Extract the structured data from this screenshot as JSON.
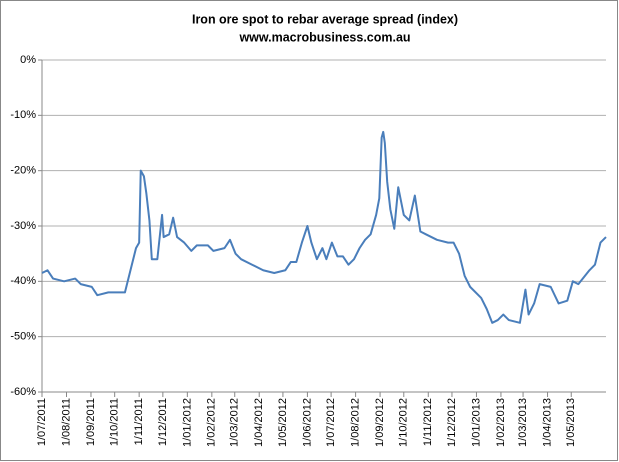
{
  "chart_data": {
    "type": "line",
    "title": "Iron ore spot to rebar average spread (index)",
    "subtitle": "www.macrobusiness.com.au",
    "x": [
      "2011-07-01",
      "2011-07-08",
      "2011-07-15",
      "2011-07-29",
      "2011-08-12",
      "2011-08-19",
      "2011-09-02",
      "2011-09-09",
      "2011-09-23",
      "2011-10-07",
      "2011-10-14",
      "2011-10-21",
      "2011-10-28",
      "2011-11-01",
      "2011-11-03",
      "2011-11-07",
      "2011-11-10",
      "2011-11-14",
      "2011-11-17",
      "2011-11-24",
      "2011-11-30",
      "2011-12-02",
      "2011-12-09",
      "2011-12-14",
      "2011-12-19",
      "2011-12-28",
      "2012-01-06",
      "2012-01-13",
      "2012-01-27",
      "2012-02-03",
      "2012-02-17",
      "2012-02-24",
      "2012-03-02",
      "2012-03-09",
      "2012-03-23",
      "2012-04-06",
      "2012-04-20",
      "2012-05-04",
      "2012-05-11",
      "2012-05-18",
      "2012-05-25",
      "2012-06-01",
      "2012-06-06",
      "2012-06-13",
      "2012-06-20",
      "2012-06-25",
      "2012-07-02",
      "2012-07-09",
      "2012-07-16",
      "2012-07-23",
      "2012-07-30",
      "2012-08-06",
      "2012-08-13",
      "2012-08-20",
      "2012-08-27",
      "2012-08-31",
      "2012-09-03",
      "2012-09-05",
      "2012-09-07",
      "2012-09-10",
      "2012-09-14",
      "2012-09-19",
      "2012-09-24",
      "2012-10-01",
      "2012-10-08",
      "2012-10-15",
      "2012-10-22",
      "2012-10-29",
      "2012-11-12",
      "2012-11-26",
      "2012-12-03",
      "2012-12-10",
      "2012-12-17",
      "2012-12-24",
      "2013-01-07",
      "2013-01-14",
      "2013-01-21",
      "2013-01-28",
      "2013-02-04",
      "2013-02-11",
      "2013-02-25",
      "2013-03-04",
      "2013-03-08",
      "2013-03-15",
      "2013-03-22",
      "2013-04-05",
      "2013-04-15",
      "2013-04-26",
      "2013-05-03",
      "2013-05-10",
      "2013-05-24",
      "2013-05-31",
      "2013-06-07",
      "2013-06-14"
    ],
    "series": [
      {
        "color": "#4a7ebb",
        "values": [
          -38.5,
          -38,
          -39.5,
          -40,
          -39.5,
          -40.5,
          -41,
          -42.5,
          -42,
          -42,
          -42,
          -38,
          -34,
          -33,
          -20,
          -21,
          -24,
          -29,
          -36,
          -36,
          -28,
          -32,
          -31.5,
          -28.5,
          -32,
          -33,
          -34.5,
          -33.5,
          -33.5,
          -34.5,
          -34,
          -32.5,
          -35,
          -36,
          -37,
          -38,
          -38.5,
          -38,
          -36.5,
          -36.5,
          -33,
          -30,
          -33,
          -36,
          -34,
          -36,
          -33,
          -35.5,
          -35.5,
          -37,
          -36,
          -34,
          -32.5,
          -31.5,
          -28,
          -25,
          -14,
          -13,
          -15,
          -22,
          -27,
          -30.5,
          -23,
          -28,
          -29,
          -24.5,
          -31,
          -31.5,
          -32.5,
          -33,
          -33,
          -35,
          -39,
          -41,
          -43,
          -45,
          -47.5,
          -47,
          -46,
          -47,
          -47.5,
          -41.5,
          -46,
          -44,
          -40.5,
          -41,
          -44,
          -43.5,
          -40,
          -40.5,
          -38,
          -37,
          -33,
          -32
        ]
      }
    ],
    "xlim": [
      "2011-07-01",
      "2013-06-14"
    ],
    "xticks": [
      {
        "value": "2011-07-01",
        "label": "1/07/2011"
      },
      {
        "value": "2011-08-01",
        "label": "1/08/2011"
      },
      {
        "value": "2011-09-01",
        "label": "1/09/2011"
      },
      {
        "value": "2011-10-01",
        "label": "1/10/2011"
      },
      {
        "value": "2011-11-01",
        "label": "1/11/2011"
      },
      {
        "value": "2011-12-01",
        "label": "1/12/2011"
      },
      {
        "value": "2012-01-01",
        "label": "1/01/2012"
      },
      {
        "value": "2012-02-01",
        "label": "1/02/2012"
      },
      {
        "value": "2012-03-01",
        "label": "1/03/2012"
      },
      {
        "value": "2012-04-01",
        "label": "1/04/2012"
      },
      {
        "value": "2012-05-01",
        "label": "1/05/2012"
      },
      {
        "value": "2012-06-01",
        "label": "1/06/2012"
      },
      {
        "value": "2012-07-01",
        "label": "1/07/2012"
      },
      {
        "value": "2012-08-01",
        "label": "1/08/2012"
      },
      {
        "value": "2012-09-01",
        "label": "1/09/2012"
      },
      {
        "value": "2012-10-01",
        "label": "1/10/2012"
      },
      {
        "value": "2012-11-01",
        "label": "1/11/2012"
      },
      {
        "value": "2012-12-01",
        "label": "1/12/2012"
      },
      {
        "value": "2013-01-01",
        "label": "1/01/2013"
      },
      {
        "value": "2013-02-01",
        "label": "1/02/2013"
      },
      {
        "value": "2013-03-01",
        "label": "1/03/2013"
      },
      {
        "value": "2013-04-01",
        "label": "1/04/2013"
      },
      {
        "value": "2013-05-01",
        "label": "1/05/2013"
      }
    ],
    "ylim": [
      -60,
      0
    ],
    "yticks": [
      {
        "value": 0,
        "label": "0%"
      },
      {
        "value": -10,
        "label": "-10%"
      },
      {
        "value": -20,
        "label": "-20%"
      },
      {
        "value": -30,
        "label": "-30%"
      },
      {
        "value": -40,
        "label": "-40%"
      },
      {
        "value": -50,
        "label": "-50%"
      },
      {
        "value": -60,
        "label": "-60%"
      }
    ],
    "grid": true
  }
}
